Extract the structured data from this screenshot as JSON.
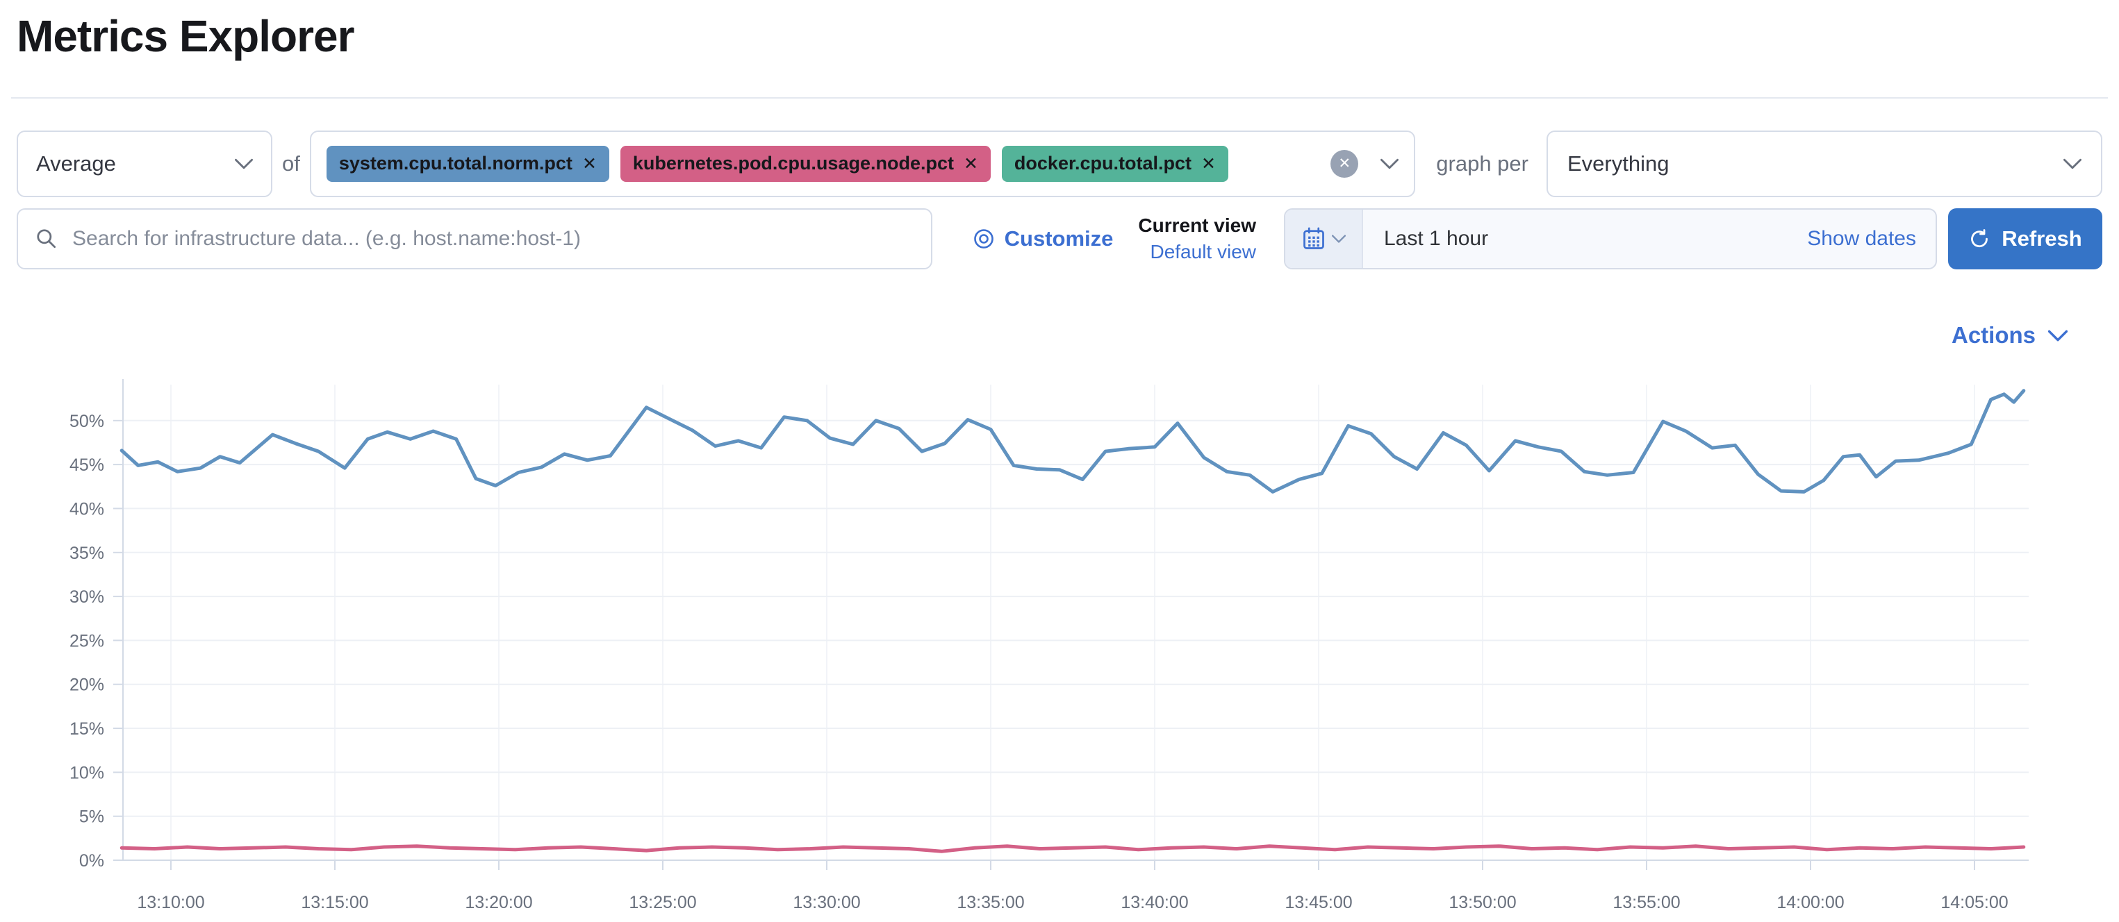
{
  "page": {
    "title": "Metrics Explorer"
  },
  "icons": {
    "badge_remove": "✕",
    "clear": "✕"
  },
  "metric_controls": {
    "aggregation_value": "Average",
    "of_label": "of",
    "metric_badges": [
      {
        "label": "system.cpu.total.norm.pct",
        "color": "#6092C0"
      },
      {
        "label": "kubernetes.pod.cpu.usage.node.pct",
        "color": "#D36086"
      },
      {
        "label": "docker.cpu.total.pct",
        "color": "#54B399"
      }
    ],
    "graph_per_label": "graph per",
    "graph_per_value": "Everything"
  },
  "search_bar": {
    "placeholder": "Search for infrastructure data... (e.g. host.name:host-1)",
    "customize_label": "Customize",
    "current_view_label": "Current view",
    "selected_view_label": "Default view",
    "time_range_value": "Last 1 hour",
    "show_dates_label": "Show dates",
    "refresh_label": "Refresh"
  },
  "actions_label": "Actions",
  "chart_data": {
    "type": "line",
    "x_unit": "time (minutes after 13:00)",
    "y_unit": "percent",
    "legend": "none",
    "grid": true,
    "y_axis": {
      "min": 0,
      "max": 52.5,
      "ticks": [
        {
          "v": 0,
          "label": "0%"
        },
        {
          "v": 5,
          "label": "5%"
        },
        {
          "v": 10,
          "label": "10%"
        },
        {
          "v": 15,
          "label": "15%"
        },
        {
          "v": 20,
          "label": "20%"
        },
        {
          "v": 25,
          "label": "25%"
        },
        {
          "v": 30,
          "label": "30%"
        },
        {
          "v": 35,
          "label": "35%"
        },
        {
          "v": 40,
          "label": "40%"
        },
        {
          "v": 45,
          "label": "45%"
        },
        {
          "v": 50,
          "label": "50%"
        }
      ]
    },
    "x_axis": {
      "ticks": [
        {
          "t": 10,
          "label": "13:10:00"
        },
        {
          "t": 15,
          "label": "13:15:00"
        },
        {
          "t": 20,
          "label": "13:20:00"
        },
        {
          "t": 25,
          "label": "13:25:00"
        },
        {
          "t": 30,
          "label": "13:30:00"
        },
        {
          "t": 35,
          "label": "13:35:00"
        },
        {
          "t": 40,
          "label": "13:40:00"
        },
        {
          "t": 45,
          "label": "13:45:00"
        },
        {
          "t": 50,
          "label": "13:50:00"
        },
        {
          "t": 55,
          "label": "13:55:00"
        },
        {
          "t": 60,
          "label": "14:00:00"
        },
        {
          "t": 65,
          "label": "14:05:00"
        }
      ]
    },
    "series": [
      {
        "name": "system.cpu.total.norm.pct",
        "color": "#6092C0",
        "points": [
          [
            8.5,
            46.6
          ],
          [
            9.0,
            44.9
          ],
          [
            9.6,
            45.3
          ],
          [
            10.2,
            44.2
          ],
          [
            10.9,
            44.6
          ],
          [
            11.5,
            45.9
          ],
          [
            12.1,
            45.2
          ],
          [
            13.1,
            48.4
          ],
          [
            13.8,
            47.4
          ],
          [
            14.5,
            46.5
          ],
          [
            15.3,
            44.6
          ],
          [
            16.0,
            47.9
          ],
          [
            16.6,
            48.7
          ],
          [
            17.3,
            47.9
          ],
          [
            18.0,
            48.8
          ],
          [
            18.7,
            47.9
          ],
          [
            19.3,
            43.4
          ],
          [
            19.9,
            42.6
          ],
          [
            20.6,
            44.1
          ],
          [
            21.3,
            44.7
          ],
          [
            22.0,
            46.2
          ],
          [
            22.7,
            45.5
          ],
          [
            23.4,
            46.0
          ],
          [
            24.5,
            51.5
          ],
          [
            25.2,
            50.2
          ],
          [
            25.9,
            48.9
          ],
          [
            26.6,
            47.1
          ],
          [
            27.3,
            47.7
          ],
          [
            28.0,
            46.9
          ],
          [
            28.7,
            50.4
          ],
          [
            29.4,
            50.0
          ],
          [
            30.1,
            48.0
          ],
          [
            30.8,
            47.3
          ],
          [
            31.5,
            50.0
          ],
          [
            32.2,
            49.1
          ],
          [
            32.9,
            46.5
          ],
          [
            33.6,
            47.4
          ],
          [
            34.3,
            50.1
          ],
          [
            35.0,
            49.0
          ],
          [
            35.7,
            44.9
          ],
          [
            36.4,
            44.5
          ],
          [
            37.1,
            44.4
          ],
          [
            37.8,
            43.3
          ],
          [
            38.5,
            46.5
          ],
          [
            39.2,
            46.8
          ],
          [
            40.0,
            47.0
          ],
          [
            40.7,
            49.7
          ],
          [
            41.5,
            45.8
          ],
          [
            42.2,
            44.2
          ],
          [
            42.9,
            43.8
          ],
          [
            43.6,
            41.9
          ],
          [
            44.4,
            43.3
          ],
          [
            45.1,
            44.0
          ],
          [
            45.9,
            49.4
          ],
          [
            46.6,
            48.5
          ],
          [
            47.3,
            45.9
          ],
          [
            48.0,
            44.5
          ],
          [
            48.8,
            48.6
          ],
          [
            49.5,
            47.2
          ],
          [
            50.2,
            44.3
          ],
          [
            51.0,
            47.7
          ],
          [
            51.7,
            47.0
          ],
          [
            52.4,
            46.5
          ],
          [
            53.1,
            44.2
          ],
          [
            53.8,
            43.8
          ],
          [
            54.6,
            44.1
          ],
          [
            55.5,
            49.9
          ],
          [
            56.2,
            48.8
          ],
          [
            57.0,
            46.9
          ],
          [
            57.7,
            47.2
          ],
          [
            58.4,
            43.9
          ],
          [
            59.1,
            42.0
          ],
          [
            59.8,
            41.9
          ],
          [
            60.4,
            43.2
          ],
          [
            61.0,
            45.9
          ],
          [
            61.5,
            46.1
          ],
          [
            62.0,
            43.6
          ],
          [
            62.6,
            45.4
          ],
          [
            63.3,
            45.5
          ],
          [
            64.2,
            46.3
          ],
          [
            64.9,
            47.3
          ],
          [
            65.5,
            52.4
          ],
          [
            65.9,
            53.0
          ],
          [
            66.2,
            52.1
          ],
          [
            66.5,
            53.4
          ]
        ]
      },
      {
        "name": "kubernetes.pod.cpu.usage.node.pct",
        "color": "#D36086",
        "points": [
          [
            8.5,
            1.4
          ],
          [
            9.5,
            1.3
          ],
          [
            10.5,
            1.5
          ],
          [
            11.5,
            1.3
          ],
          [
            12.5,
            1.4
          ],
          [
            13.5,
            1.5
          ],
          [
            14.5,
            1.3
          ],
          [
            15.5,
            1.2
          ],
          [
            16.5,
            1.5
          ],
          [
            17.5,
            1.6
          ],
          [
            18.5,
            1.4
          ],
          [
            19.5,
            1.3
          ],
          [
            20.5,
            1.2
          ],
          [
            21.5,
            1.4
          ],
          [
            22.5,
            1.5
          ],
          [
            23.5,
            1.3
          ],
          [
            24.5,
            1.1
          ],
          [
            25.5,
            1.4
          ],
          [
            26.5,
            1.5
          ],
          [
            27.5,
            1.4
          ],
          [
            28.5,
            1.2
          ],
          [
            29.5,
            1.3
          ],
          [
            30.5,
            1.5
          ],
          [
            31.5,
            1.4
          ],
          [
            32.5,
            1.3
          ],
          [
            33.5,
            1.0
          ],
          [
            34.5,
            1.4
          ],
          [
            35.5,
            1.6
          ],
          [
            36.5,
            1.3
          ],
          [
            37.5,
            1.4
          ],
          [
            38.5,
            1.5
          ],
          [
            39.5,
            1.2
          ],
          [
            40.5,
            1.4
          ],
          [
            41.5,
            1.5
          ],
          [
            42.5,
            1.3
          ],
          [
            43.5,
            1.6
          ],
          [
            44.5,
            1.4
          ],
          [
            45.5,
            1.2
          ],
          [
            46.5,
            1.5
          ],
          [
            47.5,
            1.4
          ],
          [
            48.5,
            1.3
          ],
          [
            49.5,
            1.5
          ],
          [
            50.5,
            1.6
          ],
          [
            51.5,
            1.3
          ],
          [
            52.5,
            1.4
          ],
          [
            53.5,
            1.2
          ],
          [
            54.5,
            1.5
          ],
          [
            55.5,
            1.4
          ],
          [
            56.5,
            1.6
          ],
          [
            57.5,
            1.3
          ],
          [
            58.5,
            1.4
          ],
          [
            59.5,
            1.5
          ],
          [
            60.5,
            1.2
          ],
          [
            61.5,
            1.4
          ],
          [
            62.5,
            1.3
          ],
          [
            63.5,
            1.5
          ],
          [
            64.5,
            1.4
          ],
          [
            65.5,
            1.3
          ],
          [
            66.5,
            1.5
          ]
        ]
      }
    ]
  }
}
